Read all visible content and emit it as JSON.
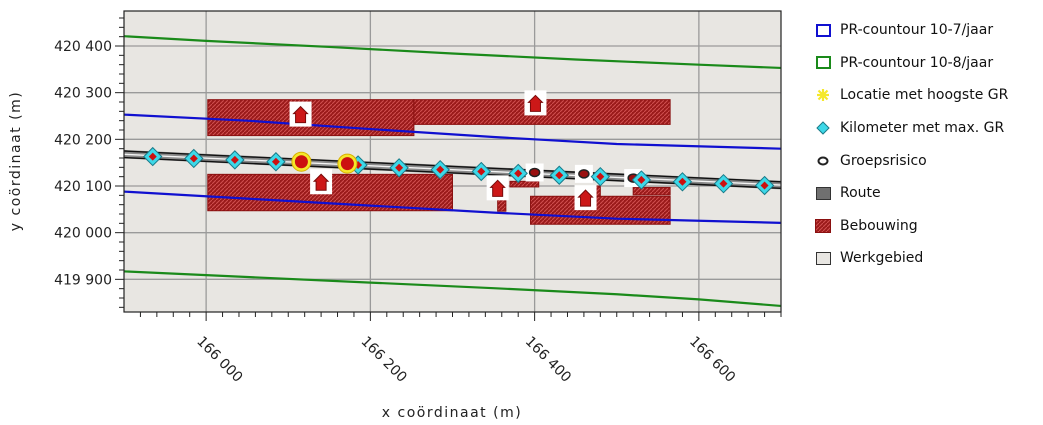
{
  "chart_data": {
    "type": "map-plot",
    "xlabel": "x coördinaat (m)",
    "ylabel": "y coördinaat (m)",
    "xlim": [
      165900,
      166700
    ],
    "ylim": [
      419830,
      420475
    ],
    "x_ticks": [
      166000,
      166200,
      166400,
      166600
    ],
    "x_tick_labels": [
      "166 000",
      "166 200",
      "166 400",
      "166 600"
    ],
    "y_ticks": [
      419900,
      420000,
      420100,
      420200,
      420300,
      420400
    ],
    "y_tick_labels": [
      "419 900",
      "420 000",
      "420 100",
      "420 200",
      "420 300",
      "420 400"
    ],
    "grid": true,
    "background_color": "#e8e6e2",
    "legend_position": "right",
    "legend": [
      {
        "key": "pr7",
        "label": "PR-countour 10-7/jaar",
        "color": "#1010d0",
        "symbol": "open-box"
      },
      {
        "key": "pr8",
        "label": "PR-countour 10-8/jaar",
        "color": "#1a8a1a",
        "symbol": "open-box"
      },
      {
        "key": "loc",
        "label": "Locatie met hoogste GR",
        "color": "#f5e82a",
        "symbol": "star"
      },
      {
        "key": "km",
        "label": "Kilometer met max. GR",
        "color": "#3dd8e8",
        "symbol": "diamond"
      },
      {
        "key": "gr",
        "label": "Groepsrisico",
        "color": "#222222",
        "symbol": "ring"
      },
      {
        "key": "route",
        "label": "Route",
        "color": "#707070",
        "symbol": "filled-box"
      },
      {
        "key": "bebouwing",
        "label": "Bebouwing",
        "color": "#a01818",
        "symbol": "hatched-box"
      },
      {
        "key": "werkgebied",
        "label": "Werkgebied",
        "color": "#e8e6e2",
        "symbol": "filled-box"
      }
    ],
    "pr_contour_7": [
      {
        "name": "upper",
        "points": [
          [
            165900,
            420253
          ],
          [
            166050,
            420240
          ],
          [
            166200,
            420222
          ],
          [
            166350,
            420205
          ],
          [
            166500,
            420190
          ],
          [
            166700,
            420180
          ]
        ]
      },
      {
        "name": "lower",
        "points": [
          [
            165900,
            420088
          ],
          [
            166050,
            420073
          ],
          [
            166200,
            420058
          ],
          [
            166350,
            420043
          ],
          [
            166500,
            420030
          ],
          [
            166700,
            420021
          ]
        ]
      }
    ],
    "pr_contour_8": [
      {
        "name": "upper",
        "points": [
          [
            165900,
            420421
          ],
          [
            166000,
            420411
          ],
          [
            166150,
            420398
          ],
          [
            166300,
            420384
          ],
          [
            166450,
            420371
          ],
          [
            166600,
            420360
          ],
          [
            166700,
            420353
          ]
        ]
      },
      {
        "name": "lower",
        "points": [
          [
            165900,
            419917
          ],
          [
            166050,
            419905
          ],
          [
            166200,
            419893
          ],
          [
            166350,
            419881
          ],
          [
            166500,
            419868
          ],
          [
            166600,
            419857
          ],
          [
            166700,
            419843
          ]
        ]
      }
    ],
    "route": {
      "points": [
        [
          165900,
          420168
        ],
        [
          166700,
          420102
        ]
      ],
      "half_width": 7
    },
    "bebouwing": [
      [
        166002,
        420285,
        166253,
        420208
      ],
      [
        166253,
        420285,
        166565,
        420232
      ],
      [
        166002,
        420125,
        166300,
        420047
      ],
      [
        166355,
        420087,
        166365,
        420046
      ],
      [
        166395,
        420078,
        166565,
        420018
      ],
      [
        166455,
        420100,
        166480,
        420078
      ],
      [
        166520,
        420097,
        166565,
        420081
      ],
      [
        166370,
        420110,
        166405,
        420098
      ]
    ],
    "house_markers": [
      [
        166115,
        420253
      ],
      [
        166401,
        420277
      ],
      [
        166140,
        420108
      ],
      [
        166355,
        420095
      ],
      [
        166462,
        420074
      ]
    ],
    "kilometer_markers": [
      [
        165935,
        420163
      ],
      [
        165985,
        420159
      ],
      [
        166035,
        420156
      ],
      [
        166085,
        420152
      ],
      [
        166185,
        420145
      ],
      [
        166235,
        420139
      ],
      [
        166285,
        420135
      ],
      [
        166335,
        420131
      ],
      [
        166380,
        420127
      ],
      [
        166430,
        420123
      ],
      [
        166480,
        420120
      ],
      [
        166530,
        420113
      ],
      [
        166580,
        420109
      ],
      [
        166630,
        420105
      ],
      [
        166680,
        420101
      ]
    ],
    "groepsrisico_markers": [
      [
        166400,
        420129
      ],
      [
        166460,
        420126
      ],
      [
        166520,
        420117
      ]
    ],
    "max_gr_locations": [
      [
        166116,
        420152
      ],
      [
        166172,
        420148
      ]
    ]
  }
}
